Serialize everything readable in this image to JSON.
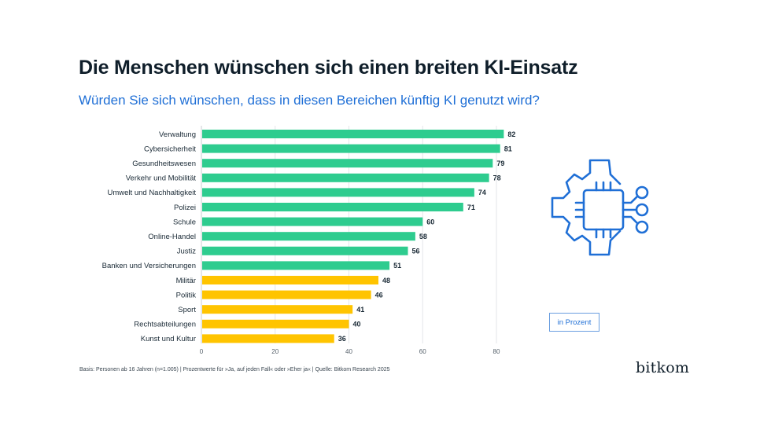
{
  "header": {
    "title": "Die Menschen wünschen sich einen breiten KI-Einsatz",
    "subtitle": "Würden Sie sich wünschen, dass in diesen Bereichen künftig KI genutzt wird?"
  },
  "unit_label": "in Prozent",
  "footnote": "Basis: Personen ab 16 Jahren (n=1.005) | Prozentwerte für »Ja, auf jeden Fall« oder »Eher ja« | Quelle: Bitkom Research 2025",
  "logo": "bitkom",
  "icon": "chip-gear-icon",
  "colors": {
    "green": "#2ecc8f",
    "yellow": "#ffc400",
    "accent": "#1f6fd6",
    "title": "#0f1e2a"
  },
  "chart_data": {
    "type": "bar",
    "orientation": "horizontal",
    "title": "Die Menschen wünschen sich einen breiten KI-Einsatz",
    "subtitle": "Würden Sie sich wünschen, dass in diesen Bereichen künftig KI genutzt wird?",
    "xlabel": "",
    "ylabel": "",
    "unit": "in Prozent",
    "xlim": [
      0,
      85
    ],
    "xticks": [
      0,
      20,
      40,
      60,
      80
    ],
    "grid": true,
    "categories": [
      "Verwaltung",
      "Cybersicherheit",
      "Gesundheitswesen",
      "Verkehr und Mobilität",
      "Umwelt und Nachhaltigkeit",
      "Polizei",
      "Schule",
      "Online-Handel",
      "Justiz",
      "Banken und Versicherungen",
      "Militär",
      "Politik",
      "Sport",
      "Rechtsabteilungen",
      "Kunst und Kultur"
    ],
    "values": [
      82,
      81,
      79,
      78,
      74,
      71,
      60,
      58,
      56,
      51,
      48,
      46,
      41,
      40,
      36
    ],
    "bar_colors": [
      "green",
      "green",
      "green",
      "green",
      "green",
      "green",
      "green",
      "green",
      "green",
      "green",
      "yellow",
      "yellow",
      "yellow",
      "yellow",
      "yellow"
    ]
  }
}
